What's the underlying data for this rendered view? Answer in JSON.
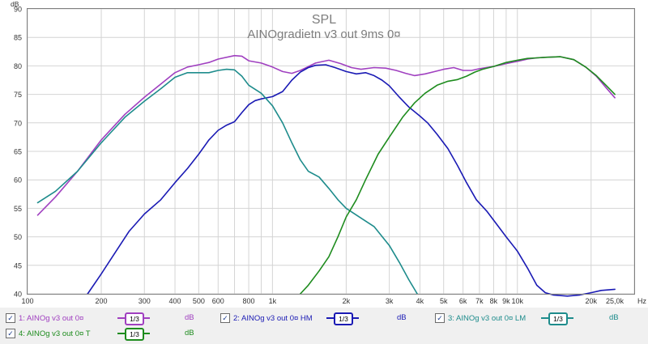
{
  "chart_data": {
    "type": "line",
    "title": "SPL",
    "subtitle": "AINOgradietn v3 out 9ms 0¤",
    "ylabel": "dB",
    "xunit": "Hz",
    "xscale": "log",
    "xlim": [
      100,
      30000
    ],
    "ylim": [
      40,
      90
    ],
    "y_ticks": [
      40,
      45,
      50,
      55,
      60,
      65,
      70,
      75,
      80,
      85,
      90
    ],
    "x_tick_labels": [
      {
        "v": 100,
        "t": "100"
      },
      {
        "v": 200,
        "t": "200"
      },
      {
        "v": 300,
        "t": "300"
      },
      {
        "v": 400,
        "t": "400"
      },
      {
        "v": 500,
        "t": "500"
      },
      {
        "v": 600,
        "t": "600"
      },
      {
        "v": 800,
        "t": "800"
      },
      {
        "v": 1000,
        "t": "1k"
      },
      {
        "v": 2000,
        "t": "2k"
      },
      {
        "v": 3000,
        "t": "3k"
      },
      {
        "v": 4000,
        "t": "4k"
      },
      {
        "v": 5000,
        "t": "5k"
      },
      {
        "v": 6000,
        "t": "6k"
      },
      {
        "v": 7000,
        "t": "7k"
      },
      {
        "v": 8000,
        "t": "8k"
      },
      {
        "v": 9000,
        "t": "9k"
      },
      {
        "v": 10000,
        "t": "10k"
      },
      {
        "v": 20000,
        "t": "20k"
      },
      {
        "v": 25000,
        "t": "25,0k"
      }
    ],
    "grid": true,
    "series": [
      {
        "name": "1: AINOg v3 out 0¤",
        "color": "#a040c0",
        "smoothing": "1/3",
        "unit": "dB",
        "points": [
          [
            110,
            53.8
          ],
          [
            130,
            57
          ],
          [
            160,
            61.5
          ],
          [
            200,
            67
          ],
          [
            250,
            71.5
          ],
          [
            300,
            74.5
          ],
          [
            350,
            76.8
          ],
          [
            400,
            78.8
          ],
          [
            450,
            79.8
          ],
          [
            500,
            80.2
          ],
          [
            550,
            80.6
          ],
          [
            600,
            81.2
          ],
          [
            700,
            81.8
          ],
          [
            750,
            81.7
          ],
          [
            800,
            80.9
          ],
          [
            900,
            80.5
          ],
          [
            1000,
            79.8
          ],
          [
            1100,
            79
          ],
          [
            1200,
            78.7
          ],
          [
            1300,
            79.2
          ],
          [
            1500,
            80.5
          ],
          [
            1700,
            81
          ],
          [
            1900,
            80.4
          ],
          [
            2100,
            79.7
          ],
          [
            2300,
            79.4
          ],
          [
            2600,
            79.7
          ],
          [
            2900,
            79.6
          ],
          [
            3200,
            79.2
          ],
          [
            3500,
            78.7
          ],
          [
            3800,
            78.3
          ],
          [
            4200,
            78.6
          ],
          [
            4600,
            79
          ],
          [
            5000,
            79.4
          ],
          [
            5500,
            79.7
          ],
          [
            6000,
            79.2
          ],
          [
            6500,
            79.2
          ],
          [
            7000,
            79.5
          ],
          [
            8000,
            79.9
          ],
          [
            9000,
            80.4
          ],
          [
            10000,
            80.8
          ],
          [
            11000,
            81.2
          ],
          [
            12000,
            81.4
          ],
          [
            13000,
            81.5
          ],
          [
            15000,
            81.6
          ],
          [
            17000,
            81.1
          ],
          [
            19000,
            79.8
          ],
          [
            21000,
            78.2
          ],
          [
            23000,
            76.2
          ],
          [
            25000,
            74.4
          ]
        ]
      },
      {
        "name": "2: AINOg v3 out 0¤ HM",
        "color": "#1a1ab4",
        "smoothing": "1/3",
        "unit": "dB",
        "points": [
          [
            176,
            40
          ],
          [
            200,
            43.5
          ],
          [
            230,
            47.5
          ],
          [
            260,
            51
          ],
          [
            300,
            54
          ],
          [
            350,
            56.5
          ],
          [
            400,
            59.5
          ],
          [
            450,
            62
          ],
          [
            500,
            64.5
          ],
          [
            550,
            67
          ],
          [
            600,
            68.7
          ],
          [
            650,
            69.6
          ],
          [
            700,
            70.2
          ],
          [
            750,
            71.8
          ],
          [
            800,
            73.2
          ],
          [
            850,
            73.9
          ],
          [
            900,
            74.2
          ],
          [
            1000,
            74.6
          ],
          [
            1100,
            75.5
          ],
          [
            1200,
            77.5
          ],
          [
            1300,
            78.9
          ],
          [
            1400,
            79.7
          ],
          [
            1500,
            80.1
          ],
          [
            1650,
            80.2
          ],
          [
            1800,
            79.7
          ],
          [
            2000,
            79
          ],
          [
            2200,
            78.6
          ],
          [
            2400,
            78.8
          ],
          [
            2600,
            78.3
          ],
          [
            2800,
            77.5
          ],
          [
            3000,
            76.5
          ],
          [
            3300,
            74.5
          ],
          [
            3600,
            72.8
          ],
          [
            4000,
            71.2
          ],
          [
            4300,
            70
          ],
          [
            4700,
            68
          ],
          [
            5200,
            65.5
          ],
          [
            5700,
            62.5
          ],
          [
            6200,
            59.5
          ],
          [
            6800,
            56.5
          ],
          [
            7500,
            54.5
          ],
          [
            8300,
            52
          ],
          [
            9000,
            50
          ],
          [
            10000,
            47.5
          ],
          [
            11000,
            44.5
          ],
          [
            12000,
            41.5
          ],
          [
            13000,
            40.2
          ],
          [
            14000,
            39.8
          ],
          [
            16000,
            39.6
          ],
          [
            18000,
            39.8
          ],
          [
            20000,
            40.2
          ],
          [
            22000,
            40.6
          ],
          [
            25000,
            40.8
          ]
        ]
      },
      {
        "name": "3: AINOg v3 out 0¤ LM",
        "color": "#1e8c8c",
        "smoothing": "1/3",
        "unit": "dB",
        "points": [
          [
            110,
            56
          ],
          [
            130,
            58
          ],
          [
            160,
            61.5
          ],
          [
            200,
            66.5
          ],
          [
            250,
            71
          ],
          [
            300,
            73.8
          ],
          [
            350,
            76
          ],
          [
            400,
            78
          ],
          [
            450,
            78.8
          ],
          [
            500,
            78.8
          ],
          [
            550,
            78.8
          ],
          [
            600,
            79.2
          ],
          [
            650,
            79.4
          ],
          [
            700,
            79.3
          ],
          [
            750,
            78.2
          ],
          [
            800,
            76.6
          ],
          [
            900,
            75.2
          ],
          [
            1000,
            73
          ],
          [
            1100,
            70
          ],
          [
            1200,
            66.5
          ],
          [
            1300,
            63.5
          ],
          [
            1400,
            61.5
          ],
          [
            1550,
            60.5
          ],
          [
            1700,
            58.5
          ],
          [
            1850,
            56.5
          ],
          [
            2000,
            55
          ],
          [
            2300,
            53.3
          ],
          [
            2600,
            51.8
          ],
          [
            3000,
            48.5
          ],
          [
            3300,
            45.5
          ],
          [
            3600,
            42.5
          ],
          [
            3900,
            40
          ]
        ]
      },
      {
        "name": "4: AINOg v3 out 0¤ T",
        "color": "#1e8c1e",
        "smoothing": "1/3",
        "unit": "dB",
        "points": [
          [
            1300,
            40
          ],
          [
            1400,
            41.5
          ],
          [
            1550,
            44
          ],
          [
            1700,
            46.5
          ],
          [
            1850,
            50
          ],
          [
            2000,
            53.5
          ],
          [
            2200,
            56.5
          ],
          [
            2400,
            60
          ],
          [
            2700,
            64.5
          ],
          [
            3000,
            67.5
          ],
          [
            3400,
            71
          ],
          [
            3800,
            73.5
          ],
          [
            4200,
            75.2
          ],
          [
            4700,
            76.6
          ],
          [
            5200,
            77.3
          ],
          [
            5700,
            77.6
          ],
          [
            6200,
            78.2
          ],
          [
            6700,
            78.9
          ],
          [
            7200,
            79.4
          ],
          [
            8000,
            79.9
          ],
          [
            9000,
            80.6
          ],
          [
            10000,
            81
          ],
          [
            11000,
            81.3
          ],
          [
            12000,
            81.4
          ],
          [
            13000,
            81.5
          ],
          [
            15000,
            81.6
          ],
          [
            17000,
            81.1
          ],
          [
            19000,
            79.8
          ],
          [
            21000,
            78.3
          ],
          [
            23000,
            76.6
          ],
          [
            25000,
            75
          ]
        ]
      }
    ]
  },
  "legend": {
    "items": [
      {
        "label": "1: AINOg v3 out 0¤",
        "checked": "✓",
        "smoothing_label": "1/3",
        "unit": "dB"
      },
      {
        "label": "2: AINOg v3 out 0¤ HM",
        "checked": "✓",
        "smoothing_label": "1/3",
        "unit": "dB"
      },
      {
        "label": "3: AINOg v3 out 0¤ LM",
        "checked": "✓",
        "smoothing_label": "1/3",
        "unit": "dB"
      },
      {
        "label": "4: AINOg v3 out 0¤ T",
        "checked": "✓",
        "smoothing_label": "1/3",
        "unit": "dB"
      }
    ]
  }
}
